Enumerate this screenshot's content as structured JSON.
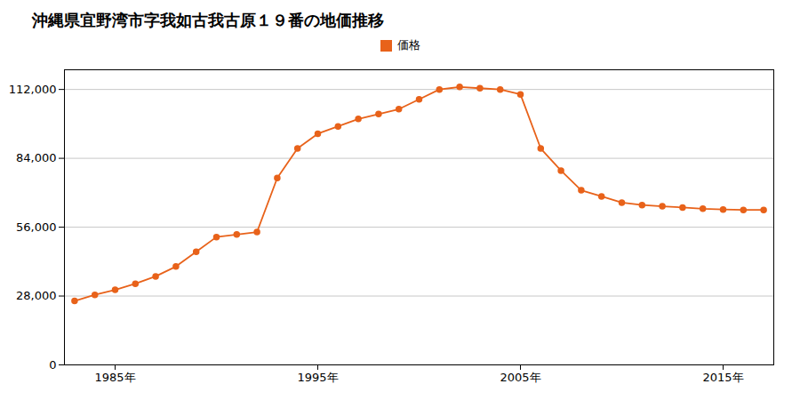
{
  "chart_data": {
    "type": "line",
    "title": "沖縄県宜野湾市字我如古我古原１９番の地価推移",
    "x": [
      1983,
      1984,
      1985,
      1986,
      1987,
      1988,
      1989,
      1990,
      1991,
      1992,
      1993,
      1994,
      1995,
      1996,
      1997,
      1998,
      1999,
      2000,
      2001,
      2002,
      2003,
      2004,
      2005,
      2006,
      2007,
      2008,
      2009,
      2010,
      2011,
      2012,
      2013,
      2014,
      2015,
      2016,
      2017
    ],
    "series": [
      {
        "name": "価格",
        "color": "#e8621a",
        "marker": "circle",
        "values": [
          26000,
          28500,
          30500,
          33000,
          36000,
          40000,
          46000,
          52000,
          53000,
          54000,
          76000,
          88000,
          94000,
          97000,
          100000,
          102000,
          104000,
          108000,
          112000,
          113000,
          112500,
          112000,
          110000,
          88000,
          79000,
          71000,
          68500,
          66000,
          65000,
          64500,
          64000,
          63500,
          63200,
          63000,
          63000
        ]
      }
    ],
    "xlim": [
      1982.5,
      2017.5
    ],
    "xticks": [
      {
        "value": 1985,
        "label": "1985年"
      },
      {
        "value": 1995,
        "label": "1995年"
      },
      {
        "value": 2005,
        "label": "2005年"
      },
      {
        "value": 2015,
        "label": "2015年"
      }
    ],
    "ylim": [
      0,
      120000
    ],
    "yticks": [
      0,
      {
        "value": 28000,
        "label": "28,000"
      },
      {
        "value": 56000,
        "label": "56,000"
      },
      {
        "value": 84000,
        "label": "84,000"
      },
      {
        "value": 112000,
        "label": "112,000"
      }
    ],
    "grid": "y",
    "legend": "top"
  }
}
